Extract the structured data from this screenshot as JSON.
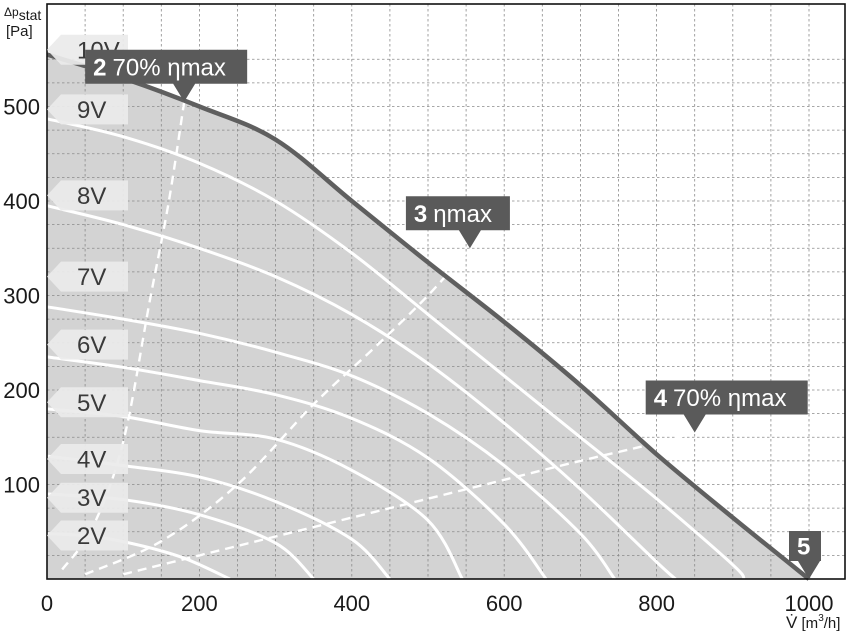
{
  "chart_data": {
    "type": "line",
    "xlabel": "V̇ [m³/h]",
    "ylabel": "Δp stat [Pa]",
    "xlim": [
      0,
      1000
    ],
    "ylim": [
      0,
      560
    ],
    "x_ticks": [
      "0",
      "200",
      "400",
      "600",
      "800",
      "1000"
    ],
    "y_ticks": [
      "100",
      "200",
      "300",
      "400",
      "500"
    ],
    "grid": true,
    "colors": {
      "envelope_fill": "#d3d3d3",
      "max_curve": "#5f5f5f",
      "speed_curves": "#ffffff",
      "callout_bg": "#5a5a5a",
      "voltage_tag_bg": "#ebebeb"
    },
    "max_curve": {
      "x": [
        0,
        100,
        200,
        300,
        400,
        500,
        600,
        700,
        800,
        900,
        1000
      ],
      "y": [
        555,
        530,
        500,
        465,
        400,
        335,
        272,
        205,
        132,
        65,
        0
      ]
    },
    "series": [
      {
        "name": "2V",
        "x": [
          0,
          60,
          120,
          180,
          240
        ],
        "y": [
          48,
          45,
          36,
          22,
          0
        ]
      },
      {
        "name": "3V",
        "x": [
          0,
          100,
          200,
          300,
          350
        ],
        "y": [
          90,
          84,
          68,
          38,
          0
        ]
      },
      {
        "name": "4V",
        "x": [
          0,
          100,
          200,
          300,
          400,
          450
        ],
        "y": [
          130,
          120,
          108,
          82,
          42,
          0
        ]
      },
      {
        "name": "5V",
        "x": [
          0,
          100,
          200,
          300,
          400,
          500,
          545
        ],
        "y": [
          180,
          172,
          157,
          148,
          115,
          62,
          0
        ]
      },
      {
        "name": "6V",
        "x": [
          0,
          100,
          200,
          300,
          400,
          500,
          600,
          655
        ],
        "y": [
          235,
          224,
          210,
          195,
          170,
          128,
          58,
          0
        ]
      },
      {
        "name": "7V",
        "x": [
          0,
          100,
          200,
          300,
          400,
          500,
          600,
          700,
          745
        ],
        "y": [
          288,
          275,
          260,
          240,
          215,
          175,
          120,
          48,
          0
        ]
      },
      {
        "name": "8V",
        "x": [
          0,
          100,
          200,
          300,
          400,
          500,
          600,
          700,
          800,
          825
        ],
        "y": [
          395,
          375,
          350,
          320,
          280,
          228,
          165,
          95,
          18,
          0
        ]
      },
      {
        "name": "9V",
        "x": [
          0,
          100,
          200,
          300,
          400,
          500,
          600,
          700,
          800,
          900,
          915
        ],
        "y": [
          487,
          468,
          440,
          400,
          345,
          280,
          215,
          150,
          85,
          15,
          0
        ]
      }
    ],
    "efficiency_lines": [
      {
        "name": "2 70% ηmax",
        "x": [
          20,
          60,
          100,
          135,
          160,
          180
        ],
        "y": [
          10,
          55,
          145,
          295,
          400,
          505
        ]
      },
      {
        "name": "3 ηmax",
        "x": [
          50,
          150,
          250,
          350,
          430,
          500,
          555
        ],
        "y": [
          5,
          40,
          100,
          185,
          245,
          300,
          350
        ]
      },
      {
        "name": "4 70% ηmax",
        "x": [
          100,
          200,
          300,
          400,
          500,
          600,
          700,
          790,
          850
        ],
        "y": [
          5,
          25,
          45,
          65,
          85,
          105,
          125,
          142,
          155
        ]
      }
    ],
    "annotations": [
      {
        "num": "2",
        "text": "70% ηmax",
        "x": 180,
        "y": 505
      },
      {
        "num": "3",
        "text": "ηmax",
        "x": 555,
        "y": 350
      },
      {
        "num": "4",
        "text": "70% ηmax",
        "x": 850,
        "y": 155
      },
      {
        "num": "5",
        "text": "",
        "x": 1000,
        "y": 0
      }
    ],
    "voltage_tags": [
      {
        "label": "10V",
        "y": 560
      },
      {
        "label": "9V",
        "y": 497
      },
      {
        "label": "8V",
        "y": 406
      },
      {
        "label": "7V",
        "y": 320
      },
      {
        "label": "6V",
        "y": 248
      },
      {
        "label": "5V",
        "y": 187
      },
      {
        "label": "4V",
        "y": 127
      },
      {
        "label": "3V",
        "y": 86
      },
      {
        "label": "2V",
        "y": 46
      }
    ]
  },
  "axis_titles": {
    "y_line1": "Δp",
    "y_sub": "stat",
    "y_line2": "[Pa]",
    "x_v": "V̇",
    "x_unit_a": " [m",
    "x_unit_sup": "3",
    "x_unit_b": "/h]"
  }
}
